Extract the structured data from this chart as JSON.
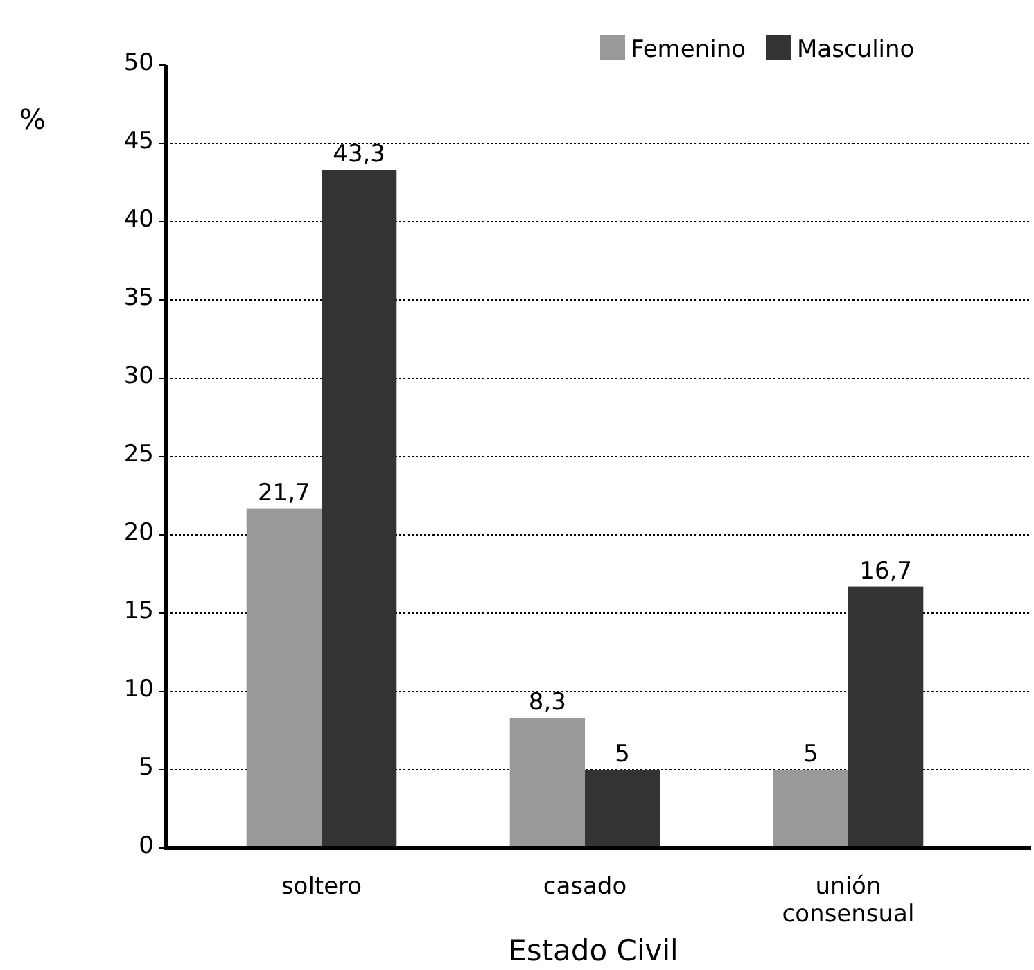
{
  "chart_data": {
    "type": "bar",
    "xlabel": "Estado Civil",
    "ylabel": "%",
    "categories": [
      "soltero",
      "casado",
      "unión consensual"
    ],
    "series": [
      {
        "name": "Femenino",
        "color": "#999999",
        "values": [
          21.7,
          8.3,
          5
        ],
        "value_labels": [
          "21,7",
          "8,3",
          "5"
        ]
      },
      {
        "name": "Masculino",
        "color": "#333333",
        "values": [
          43.3,
          5,
          16.7
        ],
        "value_labels": [
          "43,3",
          "5",
          "16,7"
        ]
      }
    ],
    "ylim": [
      0,
      50
    ],
    "yticks": [
      0,
      5,
      10,
      15,
      20,
      25,
      30,
      35,
      40,
      45,
      50
    ],
    "grid": "y",
    "legend": "top right"
  }
}
